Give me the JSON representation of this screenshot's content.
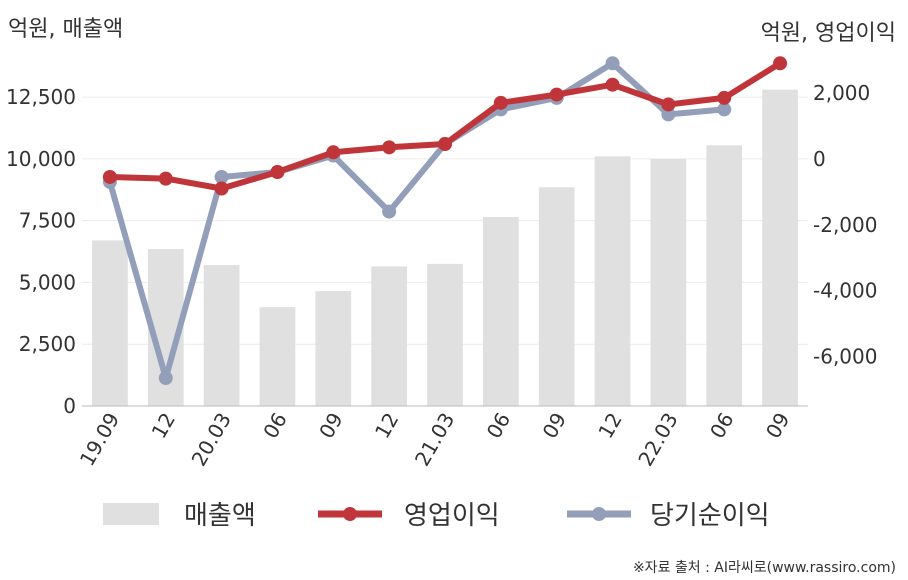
{
  "chart_data": {
    "type": "bar+line",
    "left_axis_label": "억원, 매출액",
    "right_axis_label": "억원, 영업이익",
    "categories": [
      "19.09",
      "12",
      "20.03",
      "06",
      "09",
      "12",
      "21.03",
      "06",
      "09",
      "12",
      "22.03",
      "06",
      "09"
    ],
    "left_ylim": [
      0,
      14000
    ],
    "left_ticks": [
      0,
      2500,
      5000,
      7500,
      10000,
      12500
    ],
    "left_tick_labels": [
      "0",
      "2,500",
      "5,000",
      "7,500",
      "10,000",
      "12,500"
    ],
    "right_ylim": [
      -7500,
      3000
    ],
    "right_ticks": [
      -6000,
      -4000,
      -2000,
      0,
      2000
    ],
    "right_tick_labels": [
      "-6,000",
      "-4,000",
      "-2,000",
      "0",
      "2,000"
    ],
    "series": [
      {
        "name": "매출액",
        "type": "bar",
        "axis": "left",
        "color": "#e0e0e0",
        "values": [
          6700,
          6350,
          5700,
          4000,
          4650,
          5650,
          5750,
          7650,
          8850,
          10100,
          10000,
          10550,
          12800
        ]
      },
      {
        "name": "영업이익",
        "type": "line",
        "axis": "right",
        "color": "#c0353a",
        "values": [
          -550,
          -600,
          -900,
          -400,
          200,
          350,
          450,
          1700,
          1950,
          2250,
          1650,
          1850,
          2900
        ]
      },
      {
        "name": "당기순이익",
        "type": "line",
        "axis": "right",
        "color": "#939eb8",
        "values": [
          -700,
          -6650,
          -550,
          -400,
          100,
          -1600,
          450,
          1500,
          1850,
          2900,
          1350,
          1500,
          null
        ]
      }
    ],
    "grid": "horizontal",
    "legend": "bottom"
  },
  "source": "※자료 출처 : AI라씨로(www.rassiro.com)"
}
